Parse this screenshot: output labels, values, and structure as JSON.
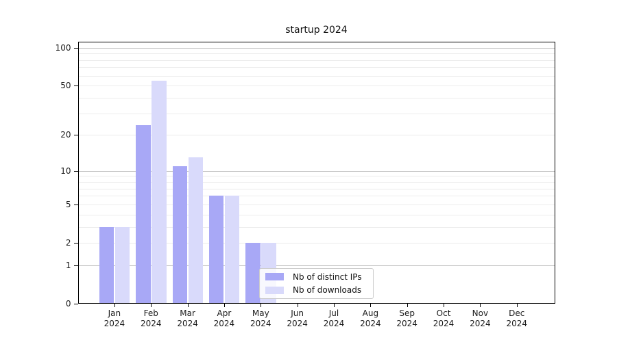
{
  "title": "startup 2024",
  "chart_data": {
    "type": "bar",
    "title": "startup 2024",
    "categories": [
      "Jan 2024",
      "Feb 2024",
      "Mar 2024",
      "Apr 2024",
      "May 2024",
      "Jun 2024",
      "Jul 2024",
      "Aug 2024",
      "Sep 2024",
      "Oct 2024",
      "Nov 2024",
      "Dec 2024"
    ],
    "series": [
      {
        "name": "Nb of distinct IPs",
        "color": "#a8a8f6",
        "values": [
          3,
          24,
          11,
          6,
          2,
          0,
          0,
          0,
          0,
          0,
          0,
          0
        ]
      },
      {
        "name": "Nb of downloads",
        "color": "#d9dafb",
        "values": [
          3,
          55,
          13,
          6,
          2,
          0,
          0,
          0,
          0,
          0,
          0,
          0
        ]
      }
    ],
    "xlabel": "",
    "ylabel": "",
    "yscale": "log10(value+1)",
    "y_ticks": [
      0,
      1,
      2,
      5,
      10,
      20,
      50,
      100
    ],
    "y_major_gridlines": [
      1,
      10,
      100
    ],
    "y_minor_gridlines": [
      2,
      3,
      4,
      5,
      6,
      7,
      8,
      9,
      20,
      30,
      40,
      50,
      60,
      70,
      80,
      90
    ],
    "ylim": [
      0,
      111
    ],
    "grid": "horizontal",
    "legend_position": "inside lower center"
  },
  "legend": {
    "items": [
      {
        "label": "Nb of distinct IPs"
      },
      {
        "label": "Nb of downloads"
      }
    ]
  },
  "colors": {
    "bar_distinct_ips": "#a8a8f6",
    "bar_downloads": "#d9dafb",
    "grid_major": "#bdbdbd",
    "grid_minor": "#ececec",
    "spine": "#000000",
    "background": "#ffffff"
  }
}
